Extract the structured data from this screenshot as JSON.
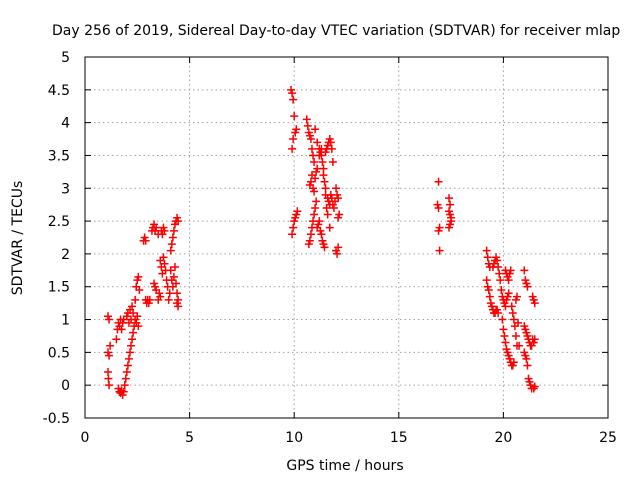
{
  "chart_data": {
    "type": "scatter",
    "title": "Day 256 of 2019, Sidereal Day-to-day VTEC variation (SDTVAR) for receiver mlap",
    "xlabel": "GPS time / hours",
    "ylabel": "SDTVAR / TECUs",
    "xlim": [
      0,
      25
    ],
    "ylim": [
      -0.5,
      5
    ],
    "xticks": [
      0,
      5,
      10,
      15,
      20,
      25
    ],
    "xtick_labels": [
      "0",
      "5",
      "10",
      "15",
      "20",
      "25"
    ],
    "yticks": [
      -0.5,
      0,
      0.5,
      1,
      1.5,
      2,
      2.5,
      3,
      3.5,
      4,
      4.5,
      5
    ],
    "ytick_labels": [
      "-0.5",
      "0",
      "0.5",
      "1",
      "1.5",
      "2",
      "2.5",
      "3",
      "3.5",
      "4",
      "4.5",
      "5"
    ],
    "grid": true,
    "marker": "+",
    "marker_color": "#ff0000",
    "series": [
      {
        "name": "SDTVAR",
        "points": [
          [
            1.1,
            1.05
          ],
          [
            1.15,
            1.0
          ],
          [
            1.1,
            0.5
          ],
          [
            1.15,
            0.45
          ],
          [
            1.1,
            0.2
          ],
          [
            1.12,
            0.1
          ],
          [
            1.15,
            0.0
          ],
          [
            1.2,
            0.6
          ],
          [
            1.5,
            0.7
          ],
          [
            1.55,
            0.85
          ],
          [
            1.6,
            0.95
          ],
          [
            1.65,
            0.9
          ],
          [
            1.7,
            1.0
          ],
          [
            1.75,
            0.85
          ],
          [
            1.8,
            0.95
          ],
          [
            1.85,
            1.0
          ],
          [
            1.6,
            -0.05
          ],
          [
            1.65,
            -0.1
          ],
          [
            1.7,
            -0.12
          ],
          [
            1.75,
            -0.08
          ],
          [
            1.8,
            -0.15
          ],
          [
            1.85,
            -0.1
          ],
          [
            1.9,
            0.0
          ],
          [
            1.95,
            0.1
          ],
          [
            2.0,
            0.2
          ],
          [
            2.05,
            0.3
          ],
          [
            2.1,
            0.4
          ],
          [
            2.15,
            0.5
          ],
          [
            2.2,
            0.6
          ],
          [
            2.25,
            0.7
          ],
          [
            2.3,
            0.8
          ],
          [
            2.35,
            0.9
          ],
          [
            2.0,
            1.05
          ],
          [
            2.05,
            1.1
          ],
          [
            2.1,
            0.95
          ],
          [
            2.15,
            1.15
          ],
          [
            2.2,
            1.0
          ],
          [
            2.25,
            1.2
          ],
          [
            2.3,
            1.1
          ],
          [
            2.4,
            1.3
          ],
          [
            2.45,
            1.5
          ],
          [
            2.5,
            1.6
          ],
          [
            2.55,
            1.65
          ],
          [
            2.6,
            1.45
          ],
          [
            2.4,
            1.0
          ],
          [
            2.45,
            0.95
          ],
          [
            2.5,
            1.05
          ],
          [
            2.55,
            0.9
          ],
          [
            2.8,
            2.2
          ],
          [
            2.85,
            2.25
          ],
          [
            2.9,
            2.2
          ],
          [
            2.9,
            1.3
          ],
          [
            2.95,
            1.25
          ],
          [
            3.0,
            1.3
          ],
          [
            3.05,
            1.25
          ],
          [
            3.1,
            1.3
          ],
          [
            3.2,
            2.35
          ],
          [
            3.25,
            2.4
          ],
          [
            3.3,
            2.45
          ],
          [
            3.35,
            2.35
          ],
          [
            3.4,
            2.4
          ],
          [
            3.5,
            2.3
          ],
          [
            3.3,
            1.55
          ],
          [
            3.35,
            1.5
          ],
          [
            3.4,
            1.45
          ],
          [
            3.5,
            1.3
          ],
          [
            3.55,
            1.4
          ],
          [
            3.6,
            1.35
          ],
          [
            3.65,
            2.35
          ],
          [
            3.7,
            2.3
          ],
          [
            3.75,
            2.4
          ],
          [
            3.8,
            2.35
          ],
          [
            3.6,
            1.9
          ],
          [
            3.65,
            1.8
          ],
          [
            3.7,
            1.7
          ],
          [
            3.75,
            1.95
          ],
          [
            3.8,
            1.85
          ],
          [
            3.85,
            1.75
          ],
          [
            3.9,
            1.6
          ],
          [
            3.95,
            1.5
          ],
          [
            4.0,
            1.3
          ],
          [
            4.05,
            1.4
          ],
          [
            4.1,
            2.05
          ],
          [
            4.15,
            2.15
          ],
          [
            4.2,
            2.25
          ],
          [
            4.25,
            2.35
          ],
          [
            4.3,
            2.45
          ],
          [
            4.35,
            2.5
          ],
          [
            4.4,
            2.55
          ],
          [
            4.45,
            2.5
          ],
          [
            4.1,
            1.75
          ],
          [
            4.15,
            1.6
          ],
          [
            4.2,
            1.5
          ],
          [
            4.25,
            1.65
          ],
          [
            4.3,
            1.8
          ],
          [
            4.35,
            1.55
          ],
          [
            4.4,
            1.4
          ],
          [
            4.45,
            1.3
          ],
          [
            4.4,
            1.25
          ],
          [
            4.45,
            1.2
          ],
          [
            9.85,
            4.5
          ],
          [
            9.9,
            4.45
          ],
          [
            9.95,
            4.35
          ],
          [
            10.0,
            4.1
          ],
          [
            10.05,
            3.85
          ],
          [
            10.1,
            3.9
          ],
          [
            9.9,
            3.6
          ],
          [
            9.95,
            3.75
          ],
          [
            9.9,
            2.3
          ],
          [
            9.95,
            2.4
          ],
          [
            10.0,
            2.5
          ],
          [
            10.05,
            2.55
          ],
          [
            10.1,
            2.6
          ],
          [
            10.15,
            2.65
          ],
          [
            10.6,
            4.05
          ],
          [
            10.65,
            3.95
          ],
          [
            10.7,
            3.85
          ],
          [
            10.75,
            3.8
          ],
          [
            10.8,
            3.75
          ],
          [
            10.85,
            3.6
          ],
          [
            10.9,
            3.5
          ],
          [
            10.95,
            3.4
          ],
          [
            10.7,
            2.15
          ],
          [
            10.75,
            2.2
          ],
          [
            10.8,
            2.3
          ],
          [
            10.85,
            2.4
          ],
          [
            10.9,
            2.5
          ],
          [
            10.95,
            2.6
          ],
          [
            11.0,
            2.7
          ],
          [
            11.05,
            2.8
          ],
          [
            10.75,
            3.05
          ],
          [
            10.8,
            3.1
          ],
          [
            10.85,
            3.2
          ],
          [
            10.9,
            3.0
          ],
          [
            10.95,
            2.95
          ],
          [
            11.0,
            3.15
          ],
          [
            11.05,
            3.25
          ],
          [
            11.1,
            3.3
          ],
          [
            11.1,
            2.4
          ],
          [
            11.15,
            2.45
          ],
          [
            11.2,
            2.5
          ],
          [
            11.25,
            2.35
          ],
          [
            11.3,
            2.3
          ],
          [
            11.35,
            2.2
          ],
          [
            11.4,
            2.15
          ],
          [
            11.45,
            2.1
          ],
          [
            11.2,
            3.5
          ],
          [
            11.25,
            3.55
          ],
          [
            11.3,
            3.6
          ],
          [
            11.35,
            3.4
          ],
          [
            11.4,
            3.3
          ],
          [
            11.45,
            3.1
          ],
          [
            11.5,
            2.9
          ],
          [
            11.55,
            2.7
          ],
          [
            11.5,
            3.55
          ],
          [
            11.55,
            3.6
          ],
          [
            11.6,
            3.65
          ],
          [
            11.65,
            3.7
          ],
          [
            11.7,
            3.75
          ],
          [
            11.75,
            3.7
          ],
          [
            11.8,
            3.6
          ],
          [
            11.85,
            3.4
          ],
          [
            11.6,
            2.85
          ],
          [
            11.65,
            2.8
          ],
          [
            11.7,
            2.75
          ],
          [
            11.75,
            2.9
          ],
          [
            11.8,
            2.85
          ],
          [
            11.85,
            2.75
          ],
          [
            11.9,
            2.7
          ],
          [
            11.95,
            2.8
          ],
          [
            12.0,
            3.0
          ],
          [
            12.05,
            2.9
          ],
          [
            12.1,
            2.85
          ],
          [
            12.15,
            2.6
          ],
          [
            12.1,
            2.55
          ],
          [
            12.0,
            2.05
          ],
          [
            12.05,
            2.0
          ],
          [
            12.1,
            2.1
          ],
          [
            11.0,
            3.9
          ],
          [
            11.1,
            3.7
          ],
          [
            11.2,
            3.6
          ],
          [
            11.3,
            3.5
          ],
          [
            11.4,
            3.2
          ],
          [
            11.5,
            3.0
          ],
          [
            11.6,
            2.6
          ],
          [
            11.7,
            2.4
          ],
          [
            16.9,
            3.1
          ],
          [
            16.85,
            2.75
          ],
          [
            16.9,
            2.7
          ],
          [
            16.95,
            2.4
          ],
          [
            16.9,
            2.35
          ],
          [
            16.95,
            2.05
          ],
          [
            17.4,
            2.85
          ],
          [
            17.45,
            2.75
          ],
          [
            17.4,
            2.65
          ],
          [
            17.45,
            2.6
          ],
          [
            17.5,
            2.55
          ],
          [
            17.45,
            2.45
          ],
          [
            17.4,
            2.4
          ],
          [
            17.5,
            2.5
          ],
          [
            19.2,
            2.05
          ],
          [
            19.25,
            1.95
          ],
          [
            19.3,
            1.85
          ],
          [
            19.35,
            1.8
          ],
          [
            19.2,
            1.6
          ],
          [
            19.25,
            1.5
          ],
          [
            19.3,
            1.45
          ],
          [
            19.35,
            1.35
          ],
          [
            19.4,
            1.25
          ],
          [
            19.45,
            1.2
          ],
          [
            19.5,
            1.15
          ],
          [
            19.55,
            1.1
          ],
          [
            19.6,
            1.1
          ],
          [
            19.65,
            1.15
          ],
          [
            19.7,
            1.15
          ],
          [
            19.75,
            1.1
          ],
          [
            19.5,
            1.8
          ],
          [
            19.55,
            1.85
          ],
          [
            19.6,
            1.9
          ],
          [
            19.65,
            1.95
          ],
          [
            19.7,
            1.9
          ],
          [
            19.75,
            1.8
          ],
          [
            19.8,
            1.7
          ],
          [
            19.85,
            1.6
          ],
          [
            19.9,
            1.45
          ],
          [
            19.95,
            1.35
          ],
          [
            20.0,
            1.3
          ],
          [
            20.05,
            1.25
          ],
          [
            20.1,
            1.2
          ],
          [
            20.15,
            1.3
          ],
          [
            20.2,
            1.35
          ],
          [
            20.25,
            1.4
          ],
          [
            19.95,
            1.0
          ],
          [
            20.0,
            0.85
          ],
          [
            20.05,
            0.75
          ],
          [
            20.1,
            0.65
          ],
          [
            20.15,
            0.55
          ],
          [
            20.2,
            0.5
          ],
          [
            20.25,
            0.45
          ],
          [
            20.3,
            0.4
          ],
          [
            20.35,
            0.35
          ],
          [
            20.4,
            0.3
          ],
          [
            20.45,
            0.3
          ],
          [
            20.5,
            0.35
          ],
          [
            20.1,
            1.75
          ],
          [
            20.15,
            1.7
          ],
          [
            20.2,
            1.65
          ],
          [
            20.25,
            1.6
          ],
          [
            20.3,
            1.7
          ],
          [
            20.35,
            1.75
          ],
          [
            20.4,
            1.2
          ],
          [
            20.45,
            1.1
          ],
          [
            20.5,
            1.0
          ],
          [
            20.55,
            0.9
          ],
          [
            20.6,
            0.75
          ],
          [
            20.65,
            0.6
          ],
          [
            20.6,
            1.3
          ],
          [
            20.65,
            1.35
          ],
          [
            20.7,
            0.95
          ],
          [
            20.75,
            0.6
          ],
          [
            21.0,
            1.75
          ],
          [
            21.05,
            1.6
          ],
          [
            21.1,
            1.55
          ],
          [
            21.15,
            1.5
          ],
          [
            21.0,
            0.9
          ],
          [
            21.05,
            0.85
          ],
          [
            21.1,
            0.8
          ],
          [
            21.15,
            0.75
          ],
          [
            21.2,
            0.7
          ],
          [
            21.25,
            0.65
          ],
          [
            21.3,
            0.6
          ],
          [
            21.35,
            0.6
          ],
          [
            21.0,
            0.5
          ],
          [
            21.05,
            0.45
          ],
          [
            21.1,
            0.4
          ],
          [
            21.15,
            0.3
          ],
          [
            21.2,
            0.1
          ],
          [
            21.25,
            0.05
          ],
          [
            21.3,
            0.0
          ],
          [
            21.35,
            -0.05
          ],
          [
            21.4,
            1.35
          ],
          [
            21.45,
            1.3
          ],
          [
            21.5,
            1.25
          ],
          [
            21.4,
            0.7
          ],
          [
            21.45,
            0.65
          ],
          [
            21.5,
            0.7
          ],
          [
            21.45,
            -0.05
          ],
          [
            21.5,
            -0.02
          ]
        ]
      }
    ]
  }
}
